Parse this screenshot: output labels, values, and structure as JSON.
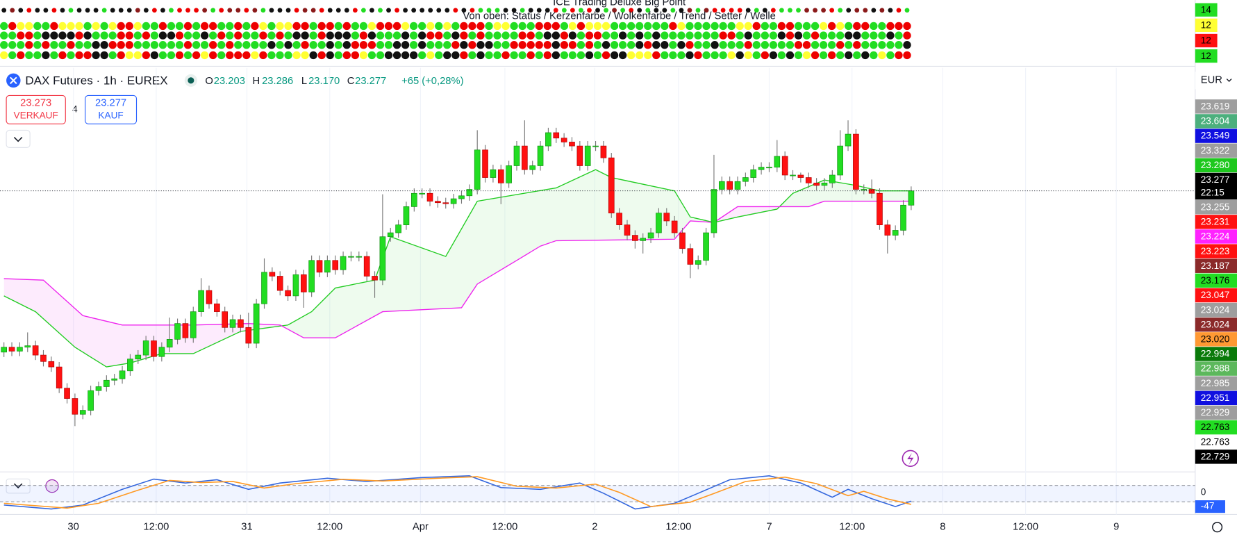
{
  "panel": {
    "title": "ICE Trading Deluxe Big Point",
    "subtitle": "Von oben: Status / Kerzenfarbe / Wolkenfarbe / Trend / Setter / Welle",
    "counts": [
      {
        "text": "14",
        "bg": "#22dd22"
      },
      {
        "text": "12",
        "bg": "#ffff33"
      },
      {
        "text": "12",
        "bg": "#ff1111"
      },
      {
        "text": "12",
        "bg": "#22dd22"
      }
    ]
  },
  "header": {
    "symbol": "DAX Futures · 1h · EUREX",
    "o_label": "O",
    "o": "23.203",
    "h_label": "H",
    "h": "23.286",
    "l_label": "L",
    "l": "23.170",
    "c_label": "C",
    "c": "23.277",
    "change": "+65 (+0,28%)",
    "currency": "EUR"
  },
  "trade": {
    "sell_price": "23.273",
    "sell": "VERKAUF",
    "spread": "4",
    "buy_price": "23.277",
    "buy": "KAUF"
  },
  "price_tags": [
    {
      "text": "23.619",
      "bg": "#9e9e9e",
      "fg": "#fff"
    },
    {
      "text": "23.604",
      "bg": "#4caf7d",
      "fg": "#fff"
    },
    {
      "text": "23.549",
      "bg": "#1010e0",
      "fg": "#fff"
    },
    {
      "text": "23.322",
      "bg": "#9e9e9e",
      "fg": "#fff"
    },
    {
      "text": "23.280",
      "bg": "#1ec81e",
      "fg": "#fff"
    },
    {
      "text": "23.277",
      "sub": "22:15",
      "bg": "#000",
      "fg": "#fff"
    },
    {
      "text": "23.255",
      "bg": "#9e9e9e",
      "fg": "#fff"
    },
    {
      "text": "23.231",
      "bg": "#ff1111",
      "fg": "#fff"
    },
    {
      "text": "23.224",
      "bg": "#ff22ff",
      "fg": "#fff"
    },
    {
      "text": "23.223",
      "bg": "#ff1111",
      "fg": "#fff"
    },
    {
      "text": "23.187",
      "bg": "#8b2a2a",
      "fg": "#fff"
    },
    {
      "text": "23.176",
      "bg": "#22dd22",
      "fg": "#000"
    },
    {
      "text": "23.047",
      "bg": "#ff1111",
      "fg": "#fff"
    },
    {
      "text": "23.024",
      "bg": "#9e9e9e",
      "fg": "#fff"
    },
    {
      "text": "23.024",
      "bg": "#8b2a2a",
      "fg": "#fff"
    },
    {
      "text": "23.020",
      "bg": "#ff9933",
      "fg": "#000"
    },
    {
      "text": "22.994",
      "bg": "#0a7a0a",
      "fg": "#fff"
    },
    {
      "text": "22.988",
      "bg": "#5cb85c",
      "fg": "#fff"
    },
    {
      "text": "22.985",
      "bg": "#9e9e9e",
      "fg": "#fff"
    },
    {
      "text": "22.951",
      "bg": "#1010e0",
      "fg": "#fff"
    },
    {
      "text": "22.929",
      "bg": "#9e9e9e",
      "fg": "#fff"
    },
    {
      "text": "22.763",
      "bg": "#22dd22",
      "fg": "#000"
    },
    {
      "text": "22.763",
      "bg": "#ffffff",
      "fg": "#000"
    },
    {
      "text": "22.729",
      "bg": "#000",
      "fg": "#fff"
    }
  ],
  "chart_data": [
    {
      "type": "candlestick",
      "title": "DAX Futures · 1h · EUREX",
      "up_color": "#22dd22",
      "down_color": "#ff1111",
      "open": [
        22950,
        22960,
        22952,
        22960,
        22963,
        22944,
        22931,
        22920,
        22877,
        22856,
        22824,
        22832,
        22872,
        22880,
        22893,
        22896,
        22912,
        22936,
        22944,
        22973,
        22941,
        22960,
        22976,
        23008,
        22979,
        23032,
        23075,
        23048,
        23032,
        23000,
        23016,
        23000,
        22968,
        23048,
        23112,
        23104,
        23075,
        23064,
        23107,
        23072,
        23136,
        23112,
        23136,
        23117,
        23144,
        23144,
        23144,
        23104,
        23096,
        23184,
        23192,
        23208,
        23245,
        23272,
        23272,
        23256,
        23253,
        23251,
        23261,
        23267,
        23280,
        23360,
        23304,
        23320,
        23293,
        23328,
        23368,
        23320,
        23328,
        23368,
        23395,
        23384,
        23376,
        23368,
        23328,
        23368,
        23368,
        23344,
        23232,
        23208,
        23187,
        23176,
        23181,
        23192,
        23232,
        23216,
        23192,
        23160,
        23128,
        23136,
        23192,
        23280,
        23296,
        23280,
        23296,
        23304,
        23320,
        23325,
        23325,
        23347,
        23309,
        23309,
        23304,
        23293,
        23288,
        23293,
        23309,
        23368,
        23392,
        23280,
        23280,
        23272,
        23208,
        23187,
        23197,
        23248
      ],
      "high": [
        22970,
        22970,
        22970,
        22990,
        22973,
        22954,
        22941,
        22930,
        22887,
        22866,
        22842,
        22882,
        22890,
        22903,
        22906,
        22922,
        22946,
        22954,
        22983,
        22983,
        22970,
        23020,
        23018,
        23018,
        23042,
        23100,
        23085,
        23058,
        23042,
        23026,
        23026,
        23030,
        23058,
        23140,
        23122,
        23114,
        23085,
        23117,
        23117,
        23146,
        23146,
        23146,
        23146,
        23154,
        23154,
        23154,
        23154,
        23114,
        23270,
        23202,
        23218,
        23255,
        23282,
        23282,
        23282,
        23266,
        23263,
        23271,
        23277,
        23290,
        23400,
        23370,
        23330,
        23330,
        23338,
        23378,
        23420,
        23338,
        23378,
        23405,
        23405,
        23394,
        23386,
        23378,
        23378,
        23378,
        23378,
        23354,
        23242,
        23218,
        23197,
        23191,
        23202,
        23242,
        23242,
        23226,
        23202,
        23170,
        23146,
        23202,
        23350,
        23306,
        23306,
        23306,
        23314,
        23330,
        23335,
        23335,
        23380,
        23357,
        23319,
        23314,
        23314,
        23303,
        23303,
        23319,
        23400,
        23420,
        23402,
        23290,
        23300,
        23282,
        23218,
        23207,
        23258,
        23286
      ],
      "low": [
        22940,
        22942,
        22942,
        22950,
        22934,
        22921,
        22910,
        22867,
        22846,
        22800,
        22814,
        22822,
        22862,
        22870,
        22883,
        22886,
        22902,
        22926,
        22934,
        22931,
        22931,
        22950,
        22966,
        22969,
        22969,
        23022,
        23038,
        23022,
        22990,
        22990,
        22990,
        22958,
        22958,
        23038,
        23094,
        23065,
        23054,
        23054,
        23040,
        23062,
        23102,
        23102,
        23107,
        23107,
        23134,
        23134,
        23094,
        23060,
        23086,
        23174,
        23182,
        23198,
        23235,
        23262,
        23246,
        23243,
        23241,
        23241,
        23251,
        23257,
        23270,
        23294,
        23294,
        23250,
        23283,
        23318,
        23310,
        23310,
        23318,
        23358,
        23374,
        23366,
        23358,
        23318,
        23318,
        23358,
        23334,
        23222,
        23198,
        23177,
        23160,
        23150,
        23171,
        23182,
        23206,
        23182,
        23150,
        23100,
        23118,
        23126,
        23182,
        23270,
        23270,
        23270,
        23286,
        23294,
        23310,
        23315,
        23315,
        23299,
        23299,
        23294,
        23283,
        23278,
        23278,
        23283,
        23299,
        23358,
        23270,
        23270,
        23262,
        23198,
        23150,
        23177,
        23187,
        23238
      ],
      "close": [
        22960,
        22952,
        22960,
        22963,
        22944,
        22931,
        22920,
        22877,
        22856,
        22824,
        22832,
        22872,
        22880,
        22893,
        22896,
        22912,
        22936,
        22944,
        22973,
        22941,
        22960,
        22976,
        23008,
        22979,
        23032,
        23075,
        23048,
        23032,
        23000,
        23016,
        23000,
        22968,
        23048,
        23112,
        23104,
        23075,
        23064,
        23107,
        23072,
        23136,
        23112,
        23136,
        23117,
        23144,
        23144,
        23144,
        23104,
        23096,
        23184,
        23192,
        23208,
        23245,
        23272,
        23272,
        23256,
        23253,
        23251,
        23261,
        23267,
        23280,
        23360,
        23304,
        23320,
        23293,
        23328,
        23368,
        23320,
        23328,
        23368,
        23395,
        23384,
        23376,
        23368,
        23328,
        23368,
        23368,
        23344,
        23232,
        23208,
        23187,
        23176,
        23181,
        23192,
        23232,
        23216,
        23192,
        23160,
        23128,
        23136,
        23192,
        23280,
        23296,
        23280,
        23296,
        23304,
        23320,
        23325,
        23325,
        23347,
        23309,
        23309,
        23304,
        23293,
        23288,
        23293,
        23309,
        23368,
        23392,
        23280,
        23280,
        23272,
        23208,
        23187,
        23197,
        23248,
        23277
      ],
      "ylim": [
        22704,
        23504
      ],
      "xticks": [
        {
          "value": 8.8,
          "label": "30"
        },
        {
          "value": 19.3,
          "label": "12:00"
        },
        {
          "value": 30.8,
          "label": "31"
        },
        {
          "value": 41.3,
          "label": "12:00"
        },
        {
          "value": 52.8,
          "label": "Apr"
        },
        {
          "value": 63.5,
          "label": "12:00"
        },
        {
          "value": 74.9,
          "label": "2"
        },
        {
          "value": 85.5,
          "label": "12:00"
        },
        {
          "value": 97,
          "label": "7"
        },
        {
          "value": 107.5,
          "label": "12:00"
        },
        {
          "value": 119,
          "label": "8"
        },
        {
          "value": 129.5,
          "label": "12:00"
        },
        {
          "value": 141,
          "label": "9"
        }
      ],
      "series": [
        {
          "color": "#22cc22",
          "x": [
            0,
            4,
            9,
            13,
            16,
            20,
            24,
            30,
            36,
            39,
            42,
            47,
            49,
            56,
            60,
            70,
            75,
            77,
            85,
            87,
            90,
            93,
            98,
            100,
            104,
            108,
            111,
            115
          ],
          "values": [
            23064,
            23032,
            22960,
            22920,
            22928,
            22947,
            22947,
            22992,
            23005,
            23032,
            23080,
            23096,
            23184,
            23144,
            23256,
            23283,
            23320,
            23304,
            23277,
            23224,
            23213,
            23224,
            23240,
            23272,
            23299,
            23288,
            23277,
            23277
          ]
        },
        {
          "color": "#ee22ee",
          "x": [
            0,
            5,
            10,
            15,
            24,
            31,
            35,
            38,
            42,
            48,
            58,
            60,
            65,
            68,
            70,
            85,
            87,
            90,
            93,
            102,
            104,
            115
          ],
          "values": [
            23099,
            23096,
            23024,
            23005,
            23005,
            23008,
            23005,
            22979,
            22979,
            23032,
            23040,
            23088,
            23136,
            23165,
            23176,
            23179,
            23216,
            23213,
            23245,
            23245,
            23256,
            23256
          ]
        }
      ]
    },
    {
      "type": "line",
      "ylim": [
        -76,
        76
      ],
      "levels": [
        32,
        -43
      ],
      "tags": [
        {
          "text": "0",
          "value": 0
        },
        {
          "text": "-47",
          "value": -47
        }
      ],
      "series": [
        {
          "color": "#3366dd",
          "x": [
            0,
            6,
            10,
            15,
            19,
            23,
            27,
            31,
            35,
            41,
            46,
            53,
            59,
            63,
            68,
            73,
            76,
            80,
            85,
            88,
            92,
            97,
            101,
            105,
            107,
            110,
            113,
            115
          ],
          "values": [
            -58,
            -76,
            -58,
            14,
            61,
            43,
            58,
            14,
            43,
            65,
            50,
            68,
            76,
            22,
            14,
            43,
            -4,
            -76,
            -50,
            -4,
            58,
            76,
            43,
            -22,
            14,
            -29,
            -65,
            -40
          ]
        },
        {
          "color": "#ff9922",
          "x": [
            0,
            8,
            12,
            17,
            21,
            25,
            29,
            33,
            37,
            43,
            48,
            55,
            60,
            65,
            70,
            75,
            78,
            82,
            87,
            90,
            94,
            99,
            103,
            107,
            109,
            112,
            115
          ],
          "values": [
            -50,
            -72,
            -50,
            10,
            55,
            45,
            50,
            20,
            40,
            60,
            52,
            65,
            72,
            28,
            20,
            38,
            0,
            -65,
            -45,
            -5,
            50,
            70,
            40,
            -15,
            5,
            -30,
            -55
          ]
        }
      ]
    }
  ]
}
